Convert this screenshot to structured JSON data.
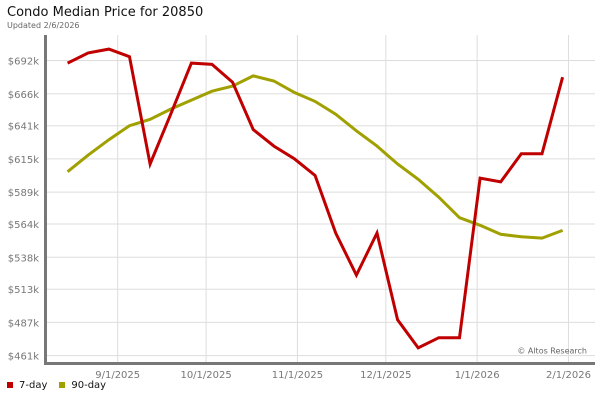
{
  "chart_data": {
    "type": "line",
    "title": "Condo Median Price for 20850",
    "subtitle": "Updated 2/6/2026",
    "xlabel": "",
    "ylabel": "",
    "ylim": [
      456,
      712
    ],
    "y_ticks": [
      461,
      487,
      513,
      538,
      564,
      589,
      615,
      641,
      666,
      692
    ],
    "y_tick_labels": [
      "$461k",
      "$487k",
      "$513k",
      "$538k",
      "$564k",
      "$589k",
      "$615k",
      "$641k",
      "$666k",
      "$692k"
    ],
    "x_range": [
      "2025-08-08",
      "2026-02-10"
    ],
    "x_ticks": [
      "2025-09-01",
      "2025-10-01",
      "2025-11-01",
      "2025-12-01",
      "2026-01-01",
      "2026-02-01"
    ],
    "x_tick_labels": [
      "9/1/2025",
      "10/1/2025",
      "11/1/2025",
      "12/1/2025",
      "1/1/2026",
      "2/1/2026"
    ],
    "grid": true,
    "legend_position": "bottom-left",
    "watermark": "© Altos Research",
    "x": [
      "2025-08-15",
      "2025-08-22",
      "2025-08-29",
      "2025-09-05",
      "2025-09-12",
      "2025-09-19",
      "2025-09-26",
      "2025-10-03",
      "2025-10-10",
      "2025-10-17",
      "2025-10-24",
      "2025-10-31",
      "2025-11-07",
      "2025-11-14",
      "2025-11-21",
      "2025-11-28",
      "2025-12-05",
      "2025-12-12",
      "2025-12-19",
      "2025-12-26",
      "2026-01-02",
      "2026-01-09",
      "2026-01-16",
      "2026-01-23",
      "2026-01-30"
    ],
    "series": [
      {
        "name": "7-day",
        "color": "#c00000",
        "values": [
          690,
          698,
          701,
          695,
          611,
          650,
          690,
          689,
          675,
          638,
          625,
          615,
          602,
          557,
          524,
          557,
          489,
          467,
          475,
          475,
          600,
          597,
          619,
          619,
          679
        ]
      },
      {
        "name": "90-day",
        "color": "#a0a000",
        "values": [
          605,
          618,
          630,
          641,
          646,
          654,
          661,
          668,
          672,
          680,
          676,
          667,
          660,
          650,
          637,
          625,
          611,
          599,
          585,
          569,
          563,
          556,
          554,
          553,
          559
        ]
      }
    ]
  }
}
